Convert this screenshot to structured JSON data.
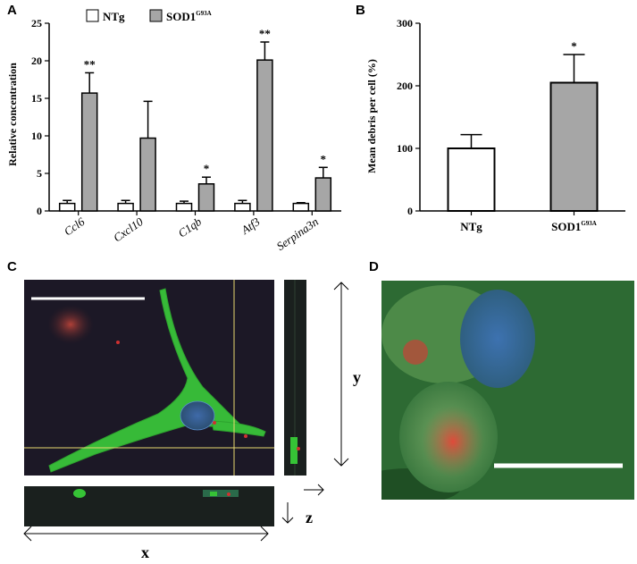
{
  "panels": {
    "a": {
      "letter": "A"
    },
    "b": {
      "letter": "B"
    },
    "c": {
      "letter": "C"
    },
    "d": {
      "letter": "D"
    }
  },
  "chart_data": [
    {
      "type": "bar",
      "panel": "A",
      "ylabel": "Relative concentration",
      "ylim": [
        0,
        25
      ],
      "yticks": [
        0,
        5,
        10,
        15,
        20,
        25
      ],
      "categories": [
        "Ccl6",
        "Cxcl10",
        "C1qb",
        "Atf3",
        "Serpina3n"
      ],
      "legend": [
        "NTg",
        "SOD1"
      ],
      "legend_superscript": "G93A",
      "legend_position": "top",
      "series": [
        {
          "name": "NTg",
          "color": "#ffffff",
          "values": [
            1.0,
            1.0,
            1.0,
            1.0,
            1.0
          ],
          "errors": [
            0.4,
            0.4,
            0.3,
            0.4,
            0.1
          ]
        },
        {
          "name": "SOD1G93A",
          "color": "#a6a6a6",
          "values": [
            15.7,
            9.7,
            3.6,
            20.1,
            4.4
          ],
          "errors": [
            2.7,
            4.9,
            0.9,
            2.4,
            1.4
          ]
        }
      ],
      "significance": [
        "**",
        "",
        "*",
        "**",
        "*"
      ]
    },
    {
      "type": "bar",
      "panel": "B",
      "ylabel": "Mean debris per cell (%)",
      "ylim": [
        0,
        300
      ],
      "yticks": [
        0,
        100,
        200,
        300
      ],
      "categories": [
        "NTg",
        "SOD1"
      ],
      "category_superscripts": [
        "",
        "G93A"
      ],
      "values": [
        100,
        205
      ],
      "errors": [
        22,
        45
      ],
      "colors": [
        "#ffffff",
        "#a6a6a6"
      ],
      "significance": [
        "",
        "*"
      ]
    }
  ],
  "panel_c": {
    "axis_x": "x",
    "axis_y": "y",
    "axis_z": "z"
  }
}
